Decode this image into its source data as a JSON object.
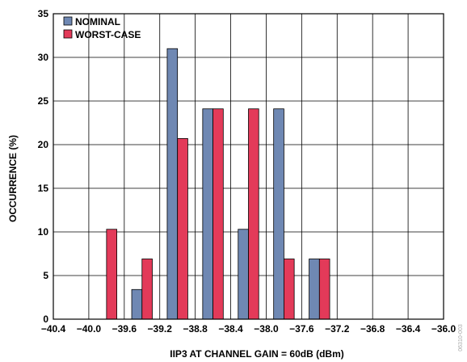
{
  "chart_data": {
    "type": "bar",
    "title": "",
    "xlabel": "IIP3 AT CHANNEL GAIN = 60dB (dBm)",
    "ylabel": "OCCURRENCE (%)",
    "xlim": [
      -40.4,
      -36.0
    ],
    "ylim": [
      0,
      35
    ],
    "x_ticks": [
      -40.4,
      -40.0,
      -39.6,
      -39.2,
      -38.8,
      -38.4,
      -38.0,
      -37.6,
      -37.2,
      -36.8,
      -36.4,
      -36.0
    ],
    "x_tick_labels": [
      "−40.4",
      "−40.0",
      "−39.6",
      "−39.2",
      "−38.8",
      "−38.4",
      "−38.0",
      "−37.6",
      "−37.2",
      "−36.8",
      "−36.4",
      "−36.0"
    ],
    "y_ticks": [
      0,
      5,
      10,
      15,
      20,
      25,
      30,
      35
    ],
    "y_tick_labels": [
      "0",
      "5",
      "10",
      "15",
      "20",
      "25",
      "30",
      "35"
    ],
    "grid": true,
    "legend_position": "top-left",
    "bins": [
      {
        "from": -40.0,
        "to": -39.6
      },
      {
        "from": -39.6,
        "to": -39.2
      },
      {
        "from": -39.2,
        "to": -38.8
      },
      {
        "from": -38.8,
        "to": -38.4
      },
      {
        "from": -38.4,
        "to": -38.0
      },
      {
        "from": -38.0,
        "to": -37.6
      },
      {
        "from": -37.6,
        "to": -37.2
      }
    ],
    "series": [
      {
        "name": "NOMINAL",
        "color": "#6f88b3",
        "values": [
          0,
          3.4,
          31.0,
          24.1,
          10.3,
          24.1,
          6.9
        ]
      },
      {
        "name": "WORST-CASE",
        "color": "#e33a59",
        "values": [
          10.3,
          6.9,
          20.7,
          24.1,
          24.1,
          6.9,
          6.9
        ]
      }
    ]
  },
  "watermark": "06310-003"
}
